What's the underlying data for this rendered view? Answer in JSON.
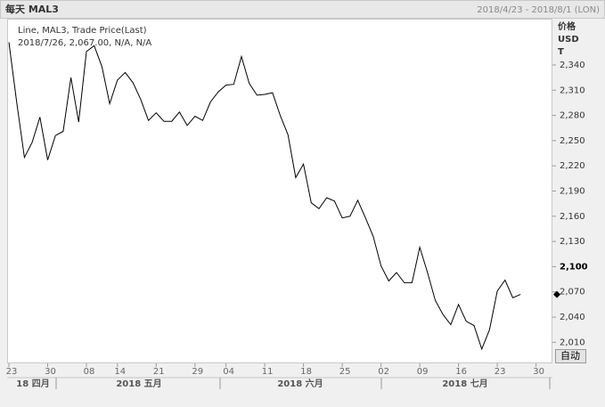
{
  "chart_data": {
    "type": "line",
    "title": "每天 MAL3",
    "date_range": "2018/4/23 - 2018/8/1 (LON)",
    "legend_lines": [
      "Line, MAL3, Trade Price(Last)",
      "2018/7/26, 2,067.00, N/A, N/A"
    ],
    "unit_lines": [
      "价格",
      "USD",
      "T"
    ],
    "auto_button": "自动",
    "color": "#000000",
    "categories": [
      "23",
      null,
      null,
      null,
      null,
      "30",
      null,
      null,
      null,
      null,
      "08",
      null,
      null,
      null,
      "14",
      null,
      null,
      null,
      null,
      "21",
      null,
      null,
      null,
      null,
      "29",
      null,
      null,
      null,
      "04",
      null,
      null,
      null,
      null,
      "11",
      null,
      null,
      null,
      null,
      "18",
      null,
      null,
      null,
      null,
      "25",
      null,
      null,
      null,
      null,
      "02",
      null,
      null,
      null,
      null,
      "09",
      null,
      null,
      null,
      null,
      "16",
      null,
      null,
      null,
      null,
      "23",
      null,
      null,
      null,
      null,
      "30",
      null,
      null
    ],
    "values": [
      2367,
      2296,
      2230,
      2248,
      2278,
      2227,
      2256,
      2261,
      2325,
      2272,
      2356,
      2363,
      2338,
      2294,
      2322,
      2331,
      2319,
      2299,
      2274,
      2283,
      2273,
      2273,
      2284,
      2268,
      2279,
      2274,
      2296,
      2308,
      2316,
      2317,
      2350,
      2318,
      2304,
      2305,
      2307,
      2280,
      2257,
      2206,
      2222,
      2176,
      2169,
      2182,
      2178,
      2158,
      2160,
      2179,
      2158,
      2136,
      2101,
      2083,
      2093,
      2081,
      2081,
      2123,
      2093,
      2060,
      2043,
      2031,
      2055,
      2035,
      2030,
      2002,
      2025,
      2071,
      2084,
      2063,
      2067,
      null,
      null,
      null,
      null
    ],
    "month_labels": [
      "18 四月",
      "2018 五月",
      "2018 六月",
      "2018 七月"
    ],
    "ylim": [
      1986,
      2394
    ],
    "yticks": [
      {
        "value": 2010,
        "label": "2,010"
      },
      {
        "value": 2040,
        "label": "2,040"
      },
      {
        "value": 2070,
        "label": "2,070"
      },
      {
        "value": 2100,
        "label": "2,100"
      },
      {
        "value": 2130,
        "label": "2,130"
      },
      {
        "value": 2160,
        "label": "2,160"
      },
      {
        "value": 2190,
        "label": "2,190"
      },
      {
        "value": 2220,
        "label": "2,220"
      },
      {
        "value": 2250,
        "label": "2,250"
      },
      {
        "value": 2280,
        "label": "2,280"
      },
      {
        "value": 2310,
        "label": "2,310"
      },
      {
        "value": 2340,
        "label": "2,340"
      }
    ],
    "grid": false
  }
}
